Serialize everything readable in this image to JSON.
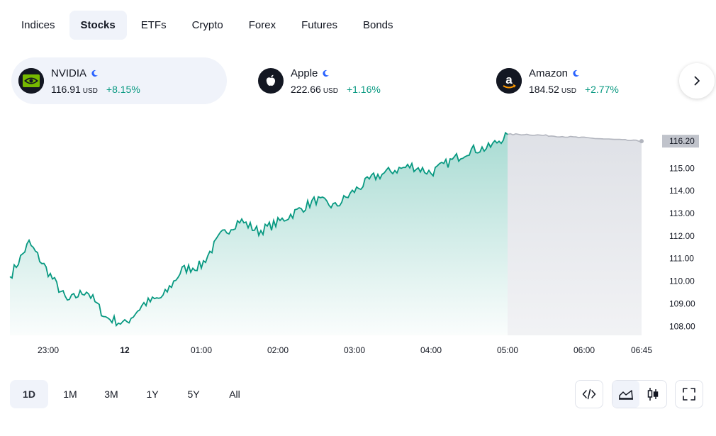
{
  "tabs": [
    {
      "label": "Indices",
      "active": false
    },
    {
      "label": "Stocks",
      "active": true
    },
    {
      "label": "ETFs",
      "active": false
    },
    {
      "label": "Crypto",
      "active": false
    },
    {
      "label": "Forex",
      "active": false
    },
    {
      "label": "Futures",
      "active": false
    },
    {
      "label": "Bonds",
      "active": false
    }
  ],
  "tickers": [
    {
      "name": "NVIDIA",
      "price": "116.91",
      "currency": "USD",
      "change": "+8.15%",
      "logo_icon": "nvidia-logo-icon",
      "active": true
    },
    {
      "name": "Apple",
      "price": "222.66",
      "currency": "USD",
      "change": "+1.16%",
      "logo_icon": "apple-logo-icon",
      "active": false
    },
    {
      "name": "Amazon",
      "price": "184.52",
      "currency": "USD",
      "change": "+2.77%",
      "logo_icon": "amazon-logo-icon",
      "active": false
    }
  ],
  "colors": {
    "accent": "#2962ff",
    "up": "#089981",
    "extended": "#b2b5be",
    "text": "#131722"
  },
  "chart_data": {
    "type": "area",
    "current_price_label": "116.20",
    "y_ticks": [
      "115.00",
      "114.00",
      "113.00",
      "112.00",
      "111.00",
      "110.00",
      "109.00",
      "108.00"
    ],
    "x_ticks": [
      "23:00",
      "12",
      "01:00",
      "02:00",
      "03:00",
      "04:00",
      "05:00",
      "06:00",
      "06:45"
    ],
    "ylim": [
      107.6,
      116.8
    ],
    "series": [
      {
        "x": [
          "22:30",
          "22:45",
          "23:00",
          "23:15",
          "23:30",
          "23:45",
          "00:00",
          "00:15",
          "00:30",
          "00:45",
          "01:00",
          "01:15",
          "01:30",
          "01:45",
          "02:00",
          "02:15",
          "02:30",
          "02:45",
          "03:00",
          "03:15",
          "03:30",
          "03:45",
          "04:00",
          "04:15",
          "04:30",
          "04:45",
          "05:00"
        ],
        "y": [
          110.2,
          111.7,
          110.4,
          109.1,
          109.6,
          108.4,
          108.1,
          109.0,
          109.3,
          110.5,
          110.7,
          112.0,
          112.7,
          112.2,
          112.6,
          113.1,
          113.6,
          113.3,
          114.0,
          114.6,
          114.9,
          115.1,
          114.8,
          115.3,
          115.8,
          115.9,
          116.5
        ]
      },
      {
        "x": [
          "05:00",
          "05:15",
          "05:30",
          "05:45",
          "06:00",
          "06:15",
          "06:30",
          "06:45"
        ],
        "y": [
          116.5,
          116.5,
          116.45,
          116.4,
          116.35,
          116.3,
          116.25,
          116.2
        ]
      }
    ]
  },
  "ranges": [
    {
      "label": "1D",
      "active": true
    },
    {
      "label": "1M",
      "active": false
    },
    {
      "label": "3M",
      "active": false
    },
    {
      "label": "1Y",
      "active": false
    },
    {
      "label": "5Y",
      "active": false
    },
    {
      "label": "All",
      "active": false
    }
  ],
  "tools": [
    {
      "icon": "embed-code-icon"
    },
    {
      "icon": "area-chart-icon",
      "active": true
    },
    {
      "icon": "candlestick-chart-icon"
    },
    {
      "icon": "fullscreen-icon"
    }
  ]
}
